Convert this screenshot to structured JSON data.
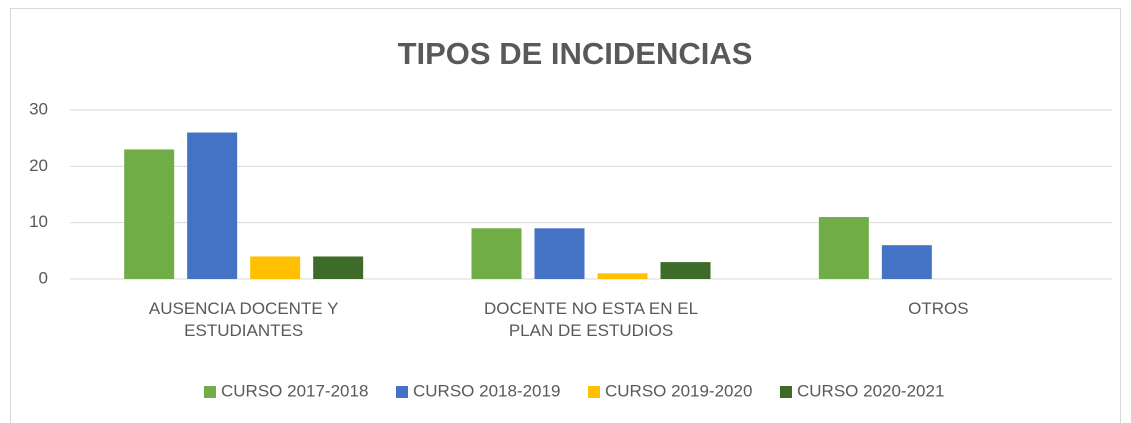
{
  "chart_data": {
    "type": "bar",
    "title": "TIPOS DE INCIDENCIAS",
    "categories": [
      "AUSENCIA DOCENTE Y ESTUDIANTES",
      "DOCENTE NO ESTA EN EL PLAN DE ESTUDIOS",
      "OTROS"
    ],
    "series": [
      {
        "name": "CURSO 2017-2018",
        "color": "#70ad47",
        "values": [
          23,
          9,
          11
        ]
      },
      {
        "name": "CURSO 2018-2019",
        "color": "#4472c4",
        "values": [
          26,
          9,
          6
        ]
      },
      {
        "name": "CURSO 2019-2020",
        "color": "#ffc000",
        "values": [
          4,
          1,
          null
        ]
      },
      {
        "name": "CURSO 2020-2021",
        "color": "#3f6b2a",
        "values": [
          4,
          3,
          null
        ]
      }
    ],
    "ylim": [
      0,
      30
    ],
    "yticks": [
      0,
      10,
      20,
      30
    ],
    "grid": true,
    "legend": "bottom"
  }
}
